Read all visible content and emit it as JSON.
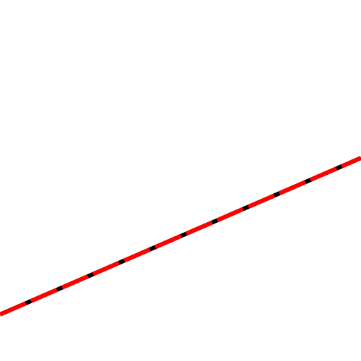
{
  "lines": [
    {
      "name": "black-underlay",
      "color": "#000000",
      "style": "solid",
      "layer": "back"
    },
    {
      "name": "red-dashed-overlay",
      "color": "#ff0000",
      "style": "dashed",
      "layer": "front"
    }
  ]
}
